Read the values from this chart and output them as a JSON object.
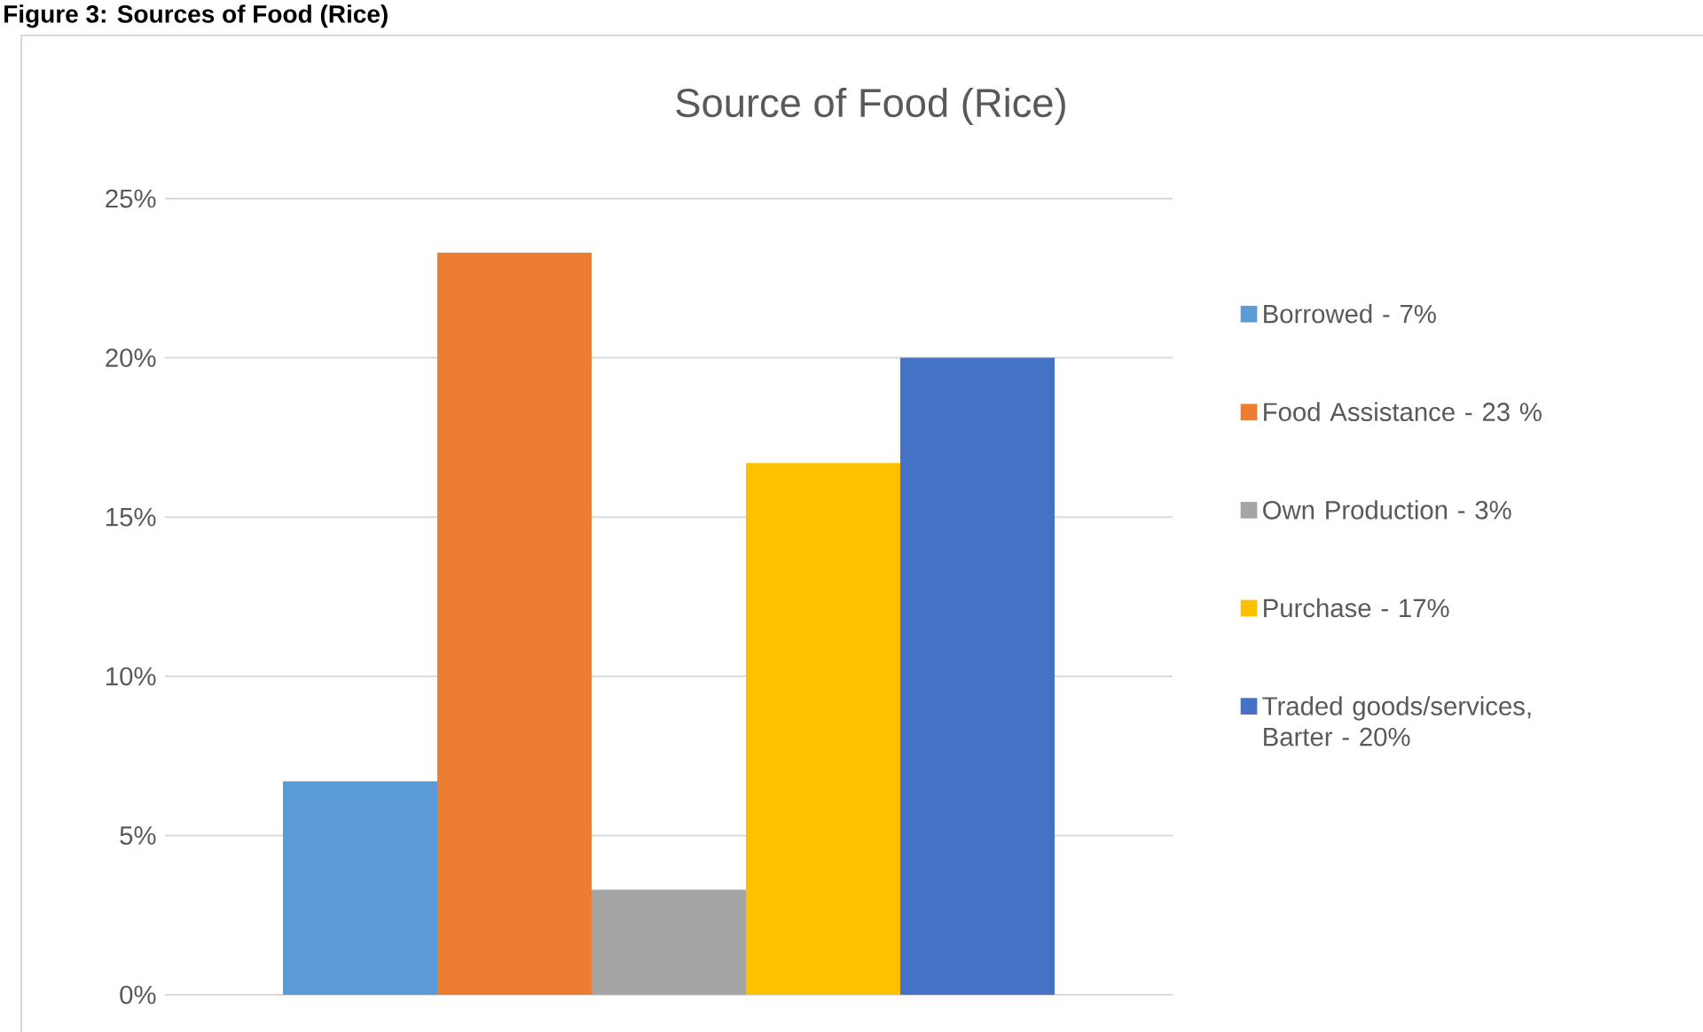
{
  "chart_data": {
    "type": "bar",
    "title": "Source of Food (Rice)",
    "annotations": [
      "Figure 3: Sources of Food (Rice)"
    ],
    "categories": [
      null
    ],
    "series": [
      {
        "name": "Borrowed - 7%",
        "color": "#5b9bd5",
        "values": [
          6.7
        ]
      },
      {
        "name": "Food Assistance - 23 %",
        "color": "#ed7d31",
        "values": [
          23.3
        ]
      },
      {
        "name": "Own Production - 3%",
        "color": "#a5a5a5",
        "values": [
          3.3
        ]
      },
      {
        "name": "Purchase - 17%",
        "color": "#ffc000",
        "values": [
          16.7
        ]
      },
      {
        "name": "Traded goods/services, Barter - 20%",
        "color": "#4472c4",
        "values": [
          20
        ]
      }
    ],
    "ylim": [
      0,
      25
    ],
    "yticks": [
      {
        "value": 0,
        "label": "0%"
      },
      {
        "value": 5,
        "label": "5%"
      },
      {
        "value": 10,
        "label": "10%"
      },
      {
        "value": 15,
        "label": "15%"
      },
      {
        "value": 20,
        "label": "20%"
      },
      {
        "value": 25,
        "label": "25%"
      }
    ],
    "grid": "y",
    "legend": "right"
  }
}
